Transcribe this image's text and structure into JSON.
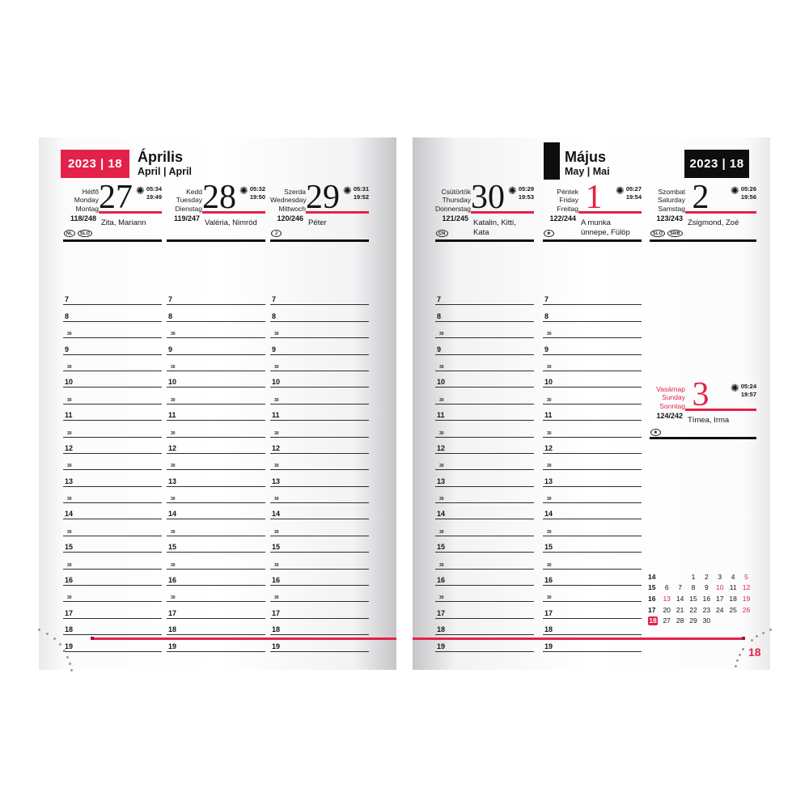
{
  "colors": {
    "accent_red": "#e32249",
    "ink_black": "#141414"
  },
  "left_header": {
    "year_week": "2023 | 18",
    "month": "Április",
    "month_sub": "April | April"
  },
  "right_header": {
    "year_week": "2023 | 18",
    "month": "Május",
    "month_sub": "May | Mai"
  },
  "page_number": "18",
  "hours": [
    "7",
    "8",
    "30",
    "9",
    "30",
    "10",
    "30",
    "11",
    "30",
    "12",
    "30",
    "13",
    "30",
    "14",
    "30",
    "15",
    "30",
    "16",
    "30",
    "17",
    "18",
    "19"
  ],
  "days": [
    {
      "names": [
        "Hétfő",
        "Monday",
        "Montag"
      ],
      "number": "27",
      "sunrise": "05:34",
      "sunset": "19:49",
      "day_of_year": "118/248",
      "name_day": [
        "Zita, Mariann",
        ""
      ],
      "flags": [
        "NL",
        "SLO"
      ]
    },
    {
      "names": [
        "Kedd",
        "Tuesday",
        "Dienstag"
      ],
      "number": "28",
      "sunrise": "05:32",
      "sunset": "19:50",
      "day_of_year": "119/247",
      "name_day": [
        "Valéria, Nimród",
        ""
      ],
      "flags": [
        "",
        ""
      ]
    },
    {
      "names": [
        "Szerda",
        "Wednesday",
        "Mittwoch"
      ],
      "number": "29",
      "sunrise": "05:31",
      "sunset": "19:52",
      "day_of_year": "120/246",
      "name_day": [
        "Péter",
        ""
      ],
      "flags": [
        "J",
        ""
      ]
    },
    {
      "names": [
        "Csütörtök",
        "Thursday",
        "Donnerstag"
      ],
      "number": "30",
      "sunrise": "05:29",
      "sunset": "19:53",
      "day_of_year": "121/245",
      "name_day": [
        "Katalin, Kitti,",
        "Kata"
      ],
      "flags": [
        "CN",
        ""
      ]
    },
    {
      "names": [
        "Péntek",
        "Friday",
        "Freitag"
      ],
      "number": "1",
      "sunrise": "05:27",
      "sunset": "19:54",
      "day_of_year": "122/244",
      "name_day": [
        "A munka",
        "ünnepe, Fülöp"
      ],
      "flags": [
        "★",
        ""
      ]
    },
    {
      "names": [
        "Szombat",
        "Saturday",
        "Samstag"
      ],
      "number": "2",
      "sunrise": "05:26",
      "sunset": "19:56",
      "day_of_year": "123/243",
      "name_day": [
        "Zsigmond, Zoé",
        ""
      ],
      "flags": [
        "SLO",
        "SRB"
      ]
    },
    {
      "names": [
        "Vasárnap",
        "Sunday",
        "Sonntag"
      ],
      "number": "3",
      "sunrise": "05:24",
      "sunset": "19:57",
      "day_of_year": "124/242",
      "name_day": [
        "Tímea, Irma",
        ""
      ],
      "flags": [
        "★",
        ""
      ]
    }
  ],
  "mini_calendar": {
    "weeks": [
      {
        "num": "14",
        "days": [
          "",
          "",
          "1",
          "2",
          "3",
          "4",
          "5"
        ],
        "red": [
          6
        ],
        "current": false
      },
      {
        "num": "15",
        "days": [
          "6",
          "7",
          "8",
          "9",
          "10",
          "11",
          "12"
        ],
        "red": [
          4,
          6
        ],
        "current": false
      },
      {
        "num": "16",
        "days": [
          "13",
          "14",
          "15",
          "16",
          "17",
          "18",
          "19"
        ],
        "red": [
          0,
          6
        ],
        "current": false
      },
      {
        "num": "17",
        "days": [
          "20",
          "21",
          "22",
          "23",
          "24",
          "25",
          "26"
        ],
        "red": [
          6
        ],
        "current": false
      },
      {
        "num": "18",
        "days": [
          "27",
          "28",
          "29",
          "30",
          "",
          "",
          ""
        ],
        "red": [],
        "current": true
      }
    ]
  }
}
